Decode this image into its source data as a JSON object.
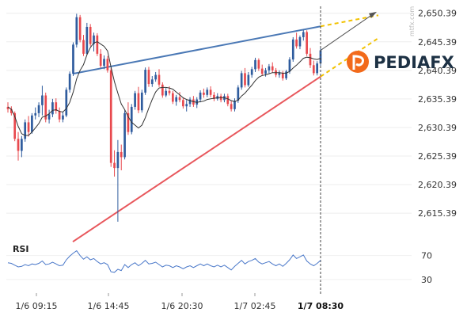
{
  "chart_data": {
    "type": "candlestick",
    "price_axis": {
      "ticks": [
        "2,650.39",
        "2,645.39",
        "2,640.39",
        "2,635.39",
        "2,630.39",
        "2,625.39",
        "2,620.39",
        "2,615.39"
      ],
      "ylim": [
        2612.5,
        2651.6
      ]
    },
    "time_axis": {
      "ticks": [
        "1/6 09:15",
        "1/6 14:45",
        "1/6 20:30",
        "1/7 02:45"
      ],
      "current": "1/7 08:30"
    },
    "watermark": "mtfx.com",
    "logo_text": "PEDIAFX",
    "candles_ohlc": [
      [
        2634.0,
        2634.8,
        2633.0,
        2633.6
      ],
      [
        2633.6,
        2634.1,
        2632.5,
        2632.9
      ],
      [
        2632.9,
        2633.2,
        2628.0,
        2628.4
      ],
      [
        2628.4,
        2629.6,
        2624.6,
        2626.3
      ],
      [
        2626.3,
        2628.9,
        2625.2,
        2628.4
      ],
      [
        2628.4,
        2631.8,
        2627.9,
        2631.3
      ],
      [
        2631.3,
        2632.4,
        2628.8,
        2629.6
      ],
      [
        2629.6,
        2632.9,
        2629.3,
        2632.5
      ],
      [
        2632.5,
        2633.9,
        2631.8,
        2632.9
      ],
      [
        2632.9,
        2634.8,
        2632.2,
        2634.3
      ],
      [
        2634.3,
        2637.7,
        2632.5,
        2636.0
      ],
      [
        2636.0,
        2636.5,
        2631.3,
        2631.8
      ],
      [
        2631.8,
        2633.5,
        2631.1,
        2632.7
      ],
      [
        2632.7,
        2635.4,
        2632.2,
        2634.8
      ],
      [
        2634.8,
        2635.5,
        2632.8,
        2633.3
      ],
      [
        2633.3,
        2633.9,
        2631.3,
        2631.8
      ],
      [
        2631.8,
        2633.1,
        2631.3,
        2632.5
      ],
      [
        2632.5,
        2637.4,
        2632.2,
        2637.0
      ],
      [
        2637.0,
        2640.2,
        2636.5,
        2639.8
      ],
      [
        2639.8,
        2645.3,
        2639.4,
        2644.9
      ],
      [
        2644.9,
        2650.3,
        2644.4,
        2649.7
      ],
      [
        2649.7,
        2650.1,
        2645.3,
        2645.7
      ],
      [
        2645.7,
        2646.6,
        2642.9,
        2643.3
      ],
      [
        2643.3,
        2648.7,
        2643.1,
        2648.0
      ],
      [
        2648.0,
        2648.5,
        2644.6,
        2645.0
      ],
      [
        2645.0,
        2647.0,
        2643.7,
        2646.5
      ],
      [
        2646.5,
        2646.9,
        2642.9,
        2643.3
      ],
      [
        2643.3,
        2644.1,
        2640.8,
        2641.2
      ],
      [
        2641.2,
        2643.0,
        2640.6,
        2642.4
      ],
      [
        2642.4,
        2642.9,
        2640.0,
        2640.4
      ],
      [
        2640.4,
        2640.8,
        2623.5,
        2624.2
      ],
      [
        2624.2,
        2626.4,
        2621.8,
        2623.3
      ],
      [
        2623.3,
        2628.2,
        2613.9,
        2626.1
      ],
      [
        2626.1,
        2627.4,
        2622.9,
        2625.2
      ],
      [
        2625.2,
        2633.4,
        2624.8,
        2632.9
      ],
      [
        2632.9,
        2634.8,
        2629.1,
        2629.6
      ],
      [
        2629.6,
        2634.5,
        2629.2,
        2634.0
      ],
      [
        2634.0,
        2636.8,
        2633.5,
        2636.4
      ],
      [
        2636.4,
        2637.5,
        2632.9,
        2633.4
      ],
      [
        2633.4,
        2637.0,
        2633.0,
        2636.5
      ],
      [
        2636.5,
        2640.9,
        2636.1,
        2640.5
      ],
      [
        2640.5,
        2641.0,
        2637.5,
        2638.0
      ],
      [
        2638.0,
        2639.4,
        2637.5,
        2638.8
      ],
      [
        2638.8,
        2640.1,
        2638.4,
        2639.6
      ],
      [
        2639.6,
        2640.6,
        2637.5,
        2637.9
      ],
      [
        2637.9,
        2638.3,
        2635.6,
        2636.0
      ],
      [
        2636.0,
        2637.3,
        2635.7,
        2636.8
      ],
      [
        2636.8,
        2637.6,
        2636.0,
        2636.4
      ],
      [
        2636.4,
        2636.8,
        2634.5,
        2634.9
      ],
      [
        2634.9,
        2636.1,
        2634.2,
        2635.7
      ],
      [
        2635.7,
        2636.6,
        2634.8,
        2635.2
      ],
      [
        2635.2,
        2635.6,
        2633.7,
        2634.1
      ],
      [
        2634.1,
        2635.2,
        2633.2,
        2634.5
      ],
      [
        2634.5,
        2635.7,
        2634.0,
        2635.3
      ],
      [
        2635.3,
        2635.9,
        2634.0,
        2634.4
      ],
      [
        2634.4,
        2635.7,
        2633.8,
        2635.3
      ],
      [
        2635.3,
        2636.9,
        2634.8,
        2636.5
      ],
      [
        2636.5,
        2637.2,
        2635.6,
        2636.1
      ],
      [
        2636.1,
        2637.4,
        2635.7,
        2637.0
      ],
      [
        2637.0,
        2637.6,
        2635.7,
        2636.1
      ],
      [
        2636.1,
        2636.6,
        2635.0,
        2635.4
      ],
      [
        2635.4,
        2636.4,
        2635.1,
        2635.9
      ],
      [
        2635.9,
        2636.3,
        2634.8,
        2635.2
      ],
      [
        2635.2,
        2636.3,
        2634.8,
        2635.9
      ],
      [
        2635.9,
        2636.3,
        2634.1,
        2634.5
      ],
      [
        2634.5,
        2635.0,
        2633.2,
        2633.6
      ],
      [
        2633.6,
        2635.5,
        2633.2,
        2635.1
      ],
      [
        2635.1,
        2637.8,
        2634.7,
        2637.4
      ],
      [
        2637.4,
        2640.3,
        2637.0,
        2639.9
      ],
      [
        2639.9,
        2640.8,
        2637.4,
        2637.8
      ],
      [
        2637.8,
        2640.1,
        2637.5,
        2639.6
      ],
      [
        2639.6,
        2641.0,
        2639.1,
        2640.6
      ],
      [
        2640.6,
        2642.6,
        2640.1,
        2642.2
      ],
      [
        2642.2,
        2642.5,
        2640.3,
        2640.7
      ],
      [
        2640.7,
        2641.4,
        2639.4,
        2639.8
      ],
      [
        2639.8,
        2640.8,
        2639.3,
        2640.4
      ],
      [
        2640.4,
        2641.5,
        2639.9,
        2641.1
      ],
      [
        2641.1,
        2641.8,
        2640.0,
        2640.4
      ],
      [
        2640.4,
        2640.8,
        2639.2,
        2639.6
      ],
      [
        2639.6,
        2640.4,
        2639.1,
        2639.9
      ],
      [
        2639.9,
        2640.3,
        2638.6,
        2639.0
      ],
      [
        2639.0,
        2640.5,
        2638.7,
        2640.2
      ],
      [
        2640.2,
        2642.7,
        2639.8,
        2642.3
      ],
      [
        2642.3,
        2646.2,
        2641.9,
        2645.8
      ],
      [
        2645.8,
        2647.0,
        2644.2,
        2644.6
      ],
      [
        2644.6,
        2646.5,
        2644.1,
        2646.2
      ],
      [
        2646.2,
        2647.5,
        2645.6,
        2647.1
      ],
      [
        2647.1,
        2647.4,
        2642.9,
        2643.3
      ],
      [
        2643.3,
        2644.3,
        2640.8,
        2641.3
      ],
      [
        2641.3,
        2642.1,
        2639.5,
        2639.9
      ],
      [
        2639.9,
        2642.0,
        2639.5,
        2641.6
      ],
      [
        2641.6,
        2644.4,
        2641.2,
        2643.9
      ]
    ],
    "moving_average": [
      2634.0,
      2633.6,
      2632.3,
      2630.6,
      2629.3,
      2629.0,
      2629.0,
      2629.6,
      2630.3,
      2631.1,
      2632.2,
      2632.4,
      2632.8,
      2633.4,
      2633.5,
      2633.2,
      2633.1,
      2633.7,
      2634.8,
      2636.6,
      2638.9,
      2640.4,
      2641.4,
      2643.1,
      2644.4,
      2645.2,
      2645.4,
      2645.0,
      2644.6,
      2643.8,
      2641.0,
      2638.4,
      2636.4,
      2634.5,
      2633.5,
      2632.3,
      2631.3,
      2630.8,
      2630.3,
      2630.8,
      2632.1,
      2633.8,
      2635.3,
      2636.6,
      2637.3,
      2637.4,
      2637.4,
      2637.3,
      2637.1,
      2636.6,
      2636.1,
      2635.6,
      2635.3,
      2635.1,
      2634.9,
      2634.8,
      2634.9,
      2635.0,
      2635.3,
      2635.4,
      2635.5,
      2635.6,
      2635.6,
      2635.6,
      2635.4,
      2635.1,
      2634.9,
      2635.2,
      2635.9,
      2636.4,
      2637.1,
      2637.8,
      2638.6,
      2639.2,
      2639.5,
      2639.6,
      2639.8,
      2640.0,
      2640.0,
      2640.0,
      2639.9,
      2639.9,
      2640.2,
      2640.8,
      2641.3,
      2641.9,
      2642.5,
      2642.7,
      2642.6,
      2642.4,
      2642.3,
      2642.5
    ],
    "rsi": {
      "label": "RSI",
      "ticks": [
        "70",
        "30"
      ],
      "tick_values": [
        70,
        30
      ],
      "ylim": [
        10,
        100
      ],
      "values": [
        58,
        57,
        54,
        51,
        52,
        55,
        53,
        56,
        55,
        57,
        61,
        55,
        56,
        59,
        56,
        53,
        54,
        63,
        69,
        74,
        78,
        70,
        64,
        68,
        63,
        65,
        60,
        56,
        58,
        55,
        43,
        42,
        47,
        45,
        55,
        50,
        55,
        58,
        53,
        57,
        62,
        56,
        57,
        59,
        55,
        51,
        54,
        53,
        50,
        53,
        51,
        48,
        51,
        53,
        50,
        53,
        56,
        53,
        56,
        53,
        51,
        54,
        51,
        54,
        50,
        46,
        52,
        57,
        62,
        56,
        60,
        62,
        65,
        59,
        56,
        58,
        60,
        56,
        53,
        56,
        52,
        57,
        63,
        71,
        65,
        68,
        71,
        61,
        56,
        53,
        57,
        62
      ]
    },
    "trendlines": {
      "upper_start": 2639.8,
      "upper_end_price": 2648.1,
      "lower_start": 2610.4,
      "lower_end_price": 2639.3,
      "projection_color": "#f2c200",
      "arrow_target": 2650.5
    },
    "colors": {
      "up": "#2f5c9e",
      "down": "#e8494e",
      "upper_trendline": "#4a78b5",
      "lower_trendline": "#e8575c",
      "moving_average": "#333333",
      "rsi_line": "#4a78c9",
      "logo_orange": "#f26a1b",
      "logo_dark": "#1d3144"
    }
  }
}
